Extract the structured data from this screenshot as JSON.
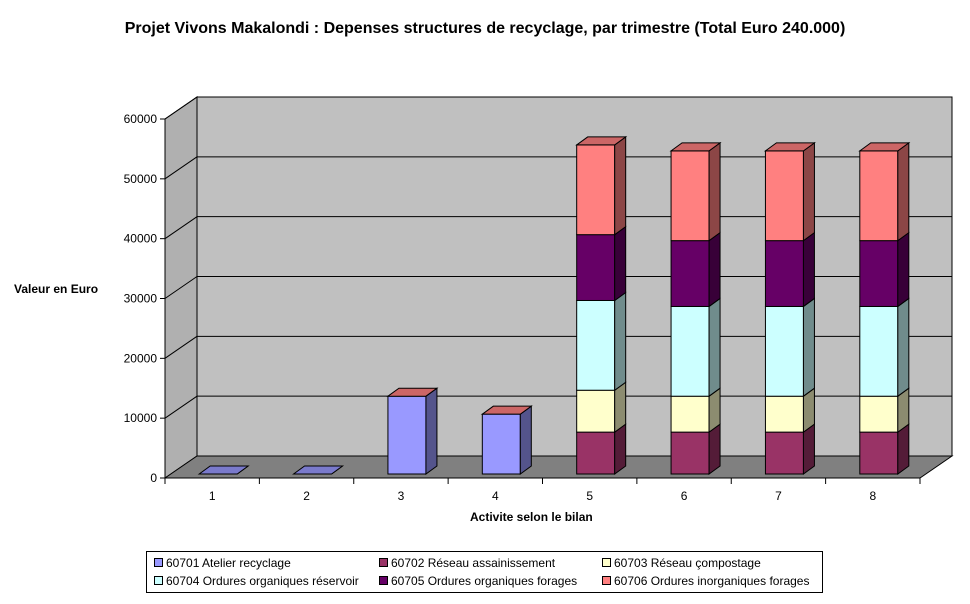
{
  "chart_data": {
    "type": "bar",
    "stacked": true,
    "three_d": true,
    "title": "Projet Vivons Makalondi : Depenses structures de recyclage, par trimestre (Total Euro 240.000)",
    "xlabel": "Activite selon le bilan",
    "ylabel": "Valeur en Euro",
    "ylim": [
      0,
      60000
    ],
    "yticks": [
      "0",
      "10000",
      "20000",
      "30000",
      "40000",
      "50000",
      "60000"
    ],
    "grid": true,
    "legend_position": "bottom",
    "categories": [
      "1",
      "2",
      "3",
      "4",
      "5",
      "6",
      "7",
      "8"
    ],
    "series": [
      {
        "name": "60701 Atelier recyclage",
        "color": "#9999ff",
        "values": [
          0,
          0,
          13000,
          10000,
          0,
          0,
          0,
          0
        ]
      },
      {
        "name": "60702 Réseau assainissement",
        "color": "#993366",
        "values": [
          0,
          0,
          0,
          0,
          7000,
          7000,
          7000,
          7000
        ]
      },
      {
        "name": "60703 Réseau çompostage",
        "color": "#ffffcc",
        "values": [
          0,
          0,
          0,
          0,
          7000,
          6000,
          6000,
          6000
        ]
      },
      {
        "name": "60704 Ordures organiques réservoir",
        "color": "#ccffff",
        "values": [
          0,
          0,
          0,
          0,
          15000,
          15000,
          15000,
          15000
        ]
      },
      {
        "name": "60705 Ordures organiques forages",
        "color": "#660066",
        "values": [
          0,
          0,
          0,
          0,
          11000,
          11000,
          11000,
          11000
        ]
      },
      {
        "name": "60706 Ordures inorganiques forages",
        "color": "#ff8080",
        "values": [
          0,
          0,
          0,
          0,
          15000,
          15000,
          15000,
          15000
        ]
      }
    ],
    "colors": {
      "wall": "#c0c0c0",
      "floor": "#808080",
      "axis": "#000000"
    }
  }
}
